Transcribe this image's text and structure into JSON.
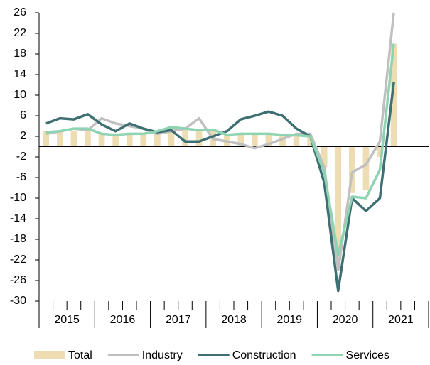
{
  "chart_data": {
    "type": "bar-line",
    "categories": [
      null,
      null,
      null,
      null,
      null,
      null,
      null,
      null,
      null,
      null,
      null,
      null,
      null,
      null,
      null,
      null,
      null,
      null,
      null,
      null,
      null,
      null,
      null,
      null,
      null,
      null,
      null,
      null
    ],
    "x_groups": [
      "2015",
      "2016",
      "2017",
      "2018",
      "2019",
      "2020",
      "2021"
    ],
    "series": [
      {
        "name": "Total",
        "type": "bar",
        "color": "#eedcb3",
        "values": [
          3,
          3,
          3,
          3.5,
          2.5,
          2.5,
          2.5,
          2.5,
          3,
          3,
          3.5,
          3,
          3,
          2.5,
          2.5,
          2.5,
          2.5,
          2.5,
          2.5,
          2,
          -4,
          -22,
          -9,
          -8.5,
          -2,
          20,
          null,
          null
        ]
      },
      {
        "name": "Industry",
        "type": "line",
        "color": "#c0c0c0",
        "values": [
          2.5,
          3,
          3.5,
          3.2,
          5.5,
          4.5,
          4,
          3.5,
          2.5,
          3,
          3.5,
          5.5,
          1.5,
          1,
          0.5,
          -0.3,
          0.5,
          1.5,
          2.5,
          2.5,
          -4,
          -24,
          -5,
          -3.5,
          1,
          26,
          null,
          null
        ]
      },
      {
        "name": "Construction",
        "type": "line",
        "color": "#3d6f73",
        "values": [
          4.5,
          5.5,
          5.3,
          6.3,
          4.3,
          3,
          4.5,
          3.5,
          2.8,
          3.2,
          1,
          1,
          2,
          3,
          5.3,
          6,
          6.8,
          6,
          3.5,
          2,
          -7,
          -28,
          -10,
          -12.5,
          -10,
          12.5,
          null,
          null
        ]
      },
      {
        "name": "Services",
        "type": "line",
        "color": "#8fd4b2",
        "values": [
          2.8,
          3,
          3.5,
          3.5,
          2.5,
          2.3,
          2.5,
          2.5,
          3,
          3.8,
          3.5,
          3.2,
          3.3,
          2.3,
          2.5,
          2.5,
          2.5,
          2.3,
          2.2,
          2,
          -5,
          -21,
          -9.7,
          -10,
          -4.5,
          20,
          null,
          null
        ]
      }
    ],
    "ylim": [
      -30,
      26
    ],
    "yticks": [
      26,
      22,
      18,
      14,
      10,
      6,
      2,
      -2,
      -6,
      -10,
      -14,
      -18,
      -22,
      -26,
      -30
    ]
  }
}
